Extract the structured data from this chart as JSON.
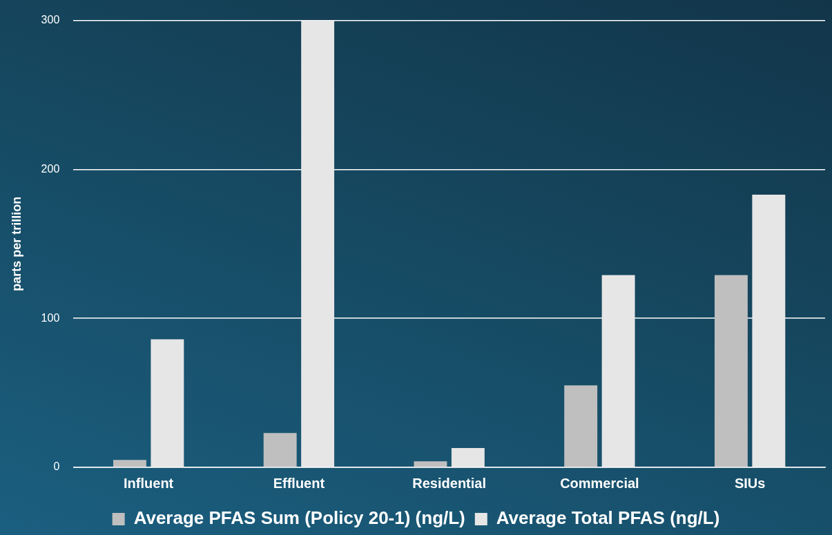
{
  "chart_data": {
    "type": "bar",
    "ylabel": "parts per trillion",
    "categories": [
      "Influent",
      "Effluent",
      "Residential",
      "Commercial",
      "SIUs"
    ],
    "series": [
      {
        "name": "Average PFAS Sum (Policy 20-1) (ng/L)",
        "color": "#bfbfbf",
        "values": [
          5,
          23,
          4,
          55,
          129
        ]
      },
      {
        "name": "Average Total PFAS (ng/L)",
        "color": "#e6e6e6",
        "values": [
          86,
          300,
          13,
          129,
          183
        ]
      }
    ],
    "ylim": [
      0,
      300
    ],
    "yticks": [
      0,
      100,
      200,
      300
    ],
    "grid": "y",
    "legend": "bottom"
  }
}
